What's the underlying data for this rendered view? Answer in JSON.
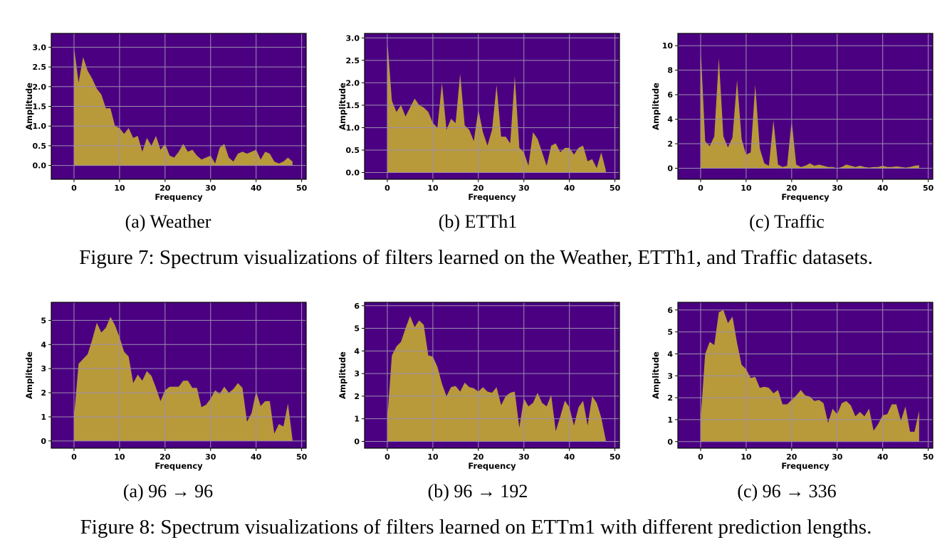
{
  "figures": [
    {
      "caption": "Figure 7: Spectrum visualizations of filters learned on the Weather, ETTh1, and Traffic datasets."
    },
    {
      "caption": "Figure 8: Spectrum visualizations of filters learned on ETTm1 with different prediction lengths."
    }
  ],
  "colors": {
    "background": "#4B0082",
    "fill": "#B89A3A",
    "grid": "#9D8EAD"
  },
  "chart_data": [
    {
      "type": "area",
      "subcaption": "(a)  Weather",
      "xlabel": "Frequency",
      "ylabel": "Amplitude",
      "xlim": [
        -5,
        51
      ],
      "ylim": [
        -0.35,
        3.35
      ],
      "xticks": [
        0,
        10,
        20,
        30,
        40,
        50
      ],
      "yticks": [
        0.0,
        0.5,
        1.0,
        1.5,
        2.0,
        2.5,
        3.0
      ],
      "ytick_labels": [
        "0.0",
        "0.5",
        "1.0",
        "1.5",
        "2.0",
        "2.5",
        "3.0"
      ],
      "grid": true,
      "x": [
        0,
        1,
        2,
        3,
        4,
        5,
        6,
        7,
        8,
        9,
        10,
        11,
        12,
        13,
        14,
        15,
        16,
        17,
        18,
        19,
        20,
        21,
        22,
        23,
        24,
        25,
        26,
        27,
        28,
        29,
        30,
        31,
        32,
        33,
        34,
        35,
        36,
        37,
        38,
        39,
        40,
        41,
        42,
        43,
        44,
        45,
        46,
        47,
        48
      ],
      "values": [
        3.0,
        2.1,
        2.75,
        2.4,
        2.2,
        1.95,
        1.8,
        1.45,
        1.45,
        1.0,
        0.95,
        0.8,
        0.95,
        0.7,
        0.75,
        0.35,
        0.7,
        0.5,
        0.75,
        0.4,
        0.55,
        0.25,
        0.2,
        0.35,
        0.55,
        0.35,
        0.4,
        0.25,
        0.15,
        0.2,
        0.25,
        0.05,
        0.45,
        0.55,
        0.2,
        0.1,
        0.3,
        0.35,
        0.3,
        0.35,
        0.4,
        0.15,
        0.35,
        0.3,
        0.1,
        0.05,
        0.1,
        0.2,
        0.1
      ]
    },
    {
      "type": "area",
      "subcaption": "(b)  ETTh1",
      "xlabel": "Frequency",
      "ylabel": "Amplitude",
      "xlim": [
        -5,
        51
      ],
      "ylim": [
        -0.15,
        3.1
      ],
      "xticks": [
        0,
        10,
        20,
        30,
        40,
        50
      ],
      "yticks": [
        0.0,
        0.5,
        1.0,
        1.5,
        2.0,
        2.5,
        3.0
      ],
      "ytick_labels": [
        "0.0",
        "0.5",
        "1.0",
        "1.5",
        "2.0",
        "2.5",
        "3.0"
      ],
      "grid": true,
      "x": [
        0,
        1,
        2,
        3,
        4,
        5,
        6,
        7,
        8,
        9,
        10,
        11,
        12,
        13,
        14,
        15,
        16,
        17,
        18,
        19,
        20,
        21,
        22,
        23,
        24,
        25,
        26,
        27,
        28,
        29,
        30,
        31,
        32,
        33,
        34,
        35,
        36,
        37,
        38,
        39,
        40,
        41,
        42,
        43,
        44,
        45,
        46,
        47,
        48
      ],
      "values": [
        2.95,
        1.6,
        1.35,
        1.5,
        1.25,
        1.45,
        1.65,
        1.5,
        1.45,
        1.35,
        1.1,
        1.0,
        2.0,
        0.95,
        1.2,
        1.1,
        2.2,
        1.05,
        0.95,
        0.7,
        1.4,
        0.9,
        0.6,
        0.95,
        1.95,
        0.8,
        0.8,
        0.65,
        2.15,
        0.55,
        0.45,
        0.15,
        0.9,
        0.75,
        0.45,
        0.15,
        0.6,
        0.65,
        0.45,
        0.55,
        0.55,
        0.4,
        0.55,
        0.6,
        0.25,
        0.3,
        0.1,
        0.45,
        0.05
      ]
    },
    {
      "type": "area",
      "subcaption": "(c)  Traffic",
      "xlabel": "Frequency",
      "ylabel": "Amplitude",
      "xlim": [
        -5,
        51
      ],
      "ylim": [
        -0.9,
        11.0
      ],
      "xticks": [
        0,
        10,
        20,
        30,
        40,
        50
      ],
      "yticks": [
        0,
        2,
        4,
        6,
        8,
        10
      ],
      "ytick_labels": [
        "0",
        "2",
        "4",
        "6",
        "8",
        "10"
      ],
      "grid": true,
      "x": [
        0,
        1,
        2,
        3,
        4,
        5,
        6,
        7,
        8,
        9,
        10,
        11,
        12,
        13,
        14,
        15,
        16,
        17,
        18,
        19,
        20,
        21,
        22,
        23,
        24,
        25,
        26,
        27,
        28,
        29,
        30,
        31,
        32,
        33,
        34,
        35,
        36,
        37,
        38,
        39,
        40,
        41,
        42,
        43,
        44,
        45,
        46,
        47,
        48
      ],
      "values": [
        10.0,
        2.2,
        1.8,
        2.6,
        9.0,
        2.6,
        1.7,
        2.5,
        7.2,
        2.4,
        1.1,
        1.3,
        6.8,
        1.6,
        0.4,
        0.2,
        3.9,
        0.3,
        0.1,
        0.2,
        3.9,
        0.3,
        0.1,
        0.2,
        0.4,
        0.2,
        0.3,
        0.2,
        0.1,
        0.1,
        0.0,
        0.1,
        0.3,
        0.2,
        0.1,
        0.2,
        0.1,
        0.05,
        0.1,
        0.1,
        0.2,
        0.1,
        0.1,
        0.15,
        0.1,
        0.05,
        0.1,
        0.2,
        0.25
      ]
    },
    {
      "type": "area",
      "subcaption": "(a)  96 → 96",
      "xlabel": "Frequency",
      "ylabel": "Amplitude",
      "xlim": [
        -5,
        51
      ],
      "ylim": [
        -0.3,
        5.75
      ],
      "xticks": [
        0,
        10,
        20,
        30,
        40,
        50
      ],
      "yticks": [
        0,
        1,
        2,
        3,
        4,
        5
      ],
      "ytick_labels": [
        "0",
        "1",
        "2",
        "3",
        "4",
        "5"
      ],
      "grid": true,
      "x": [
        0,
        1,
        2,
        3,
        4,
        5,
        6,
        7,
        8,
        9,
        10,
        11,
        12,
        13,
        14,
        15,
        16,
        17,
        18,
        19,
        20,
        21,
        22,
        23,
        24,
        25,
        26,
        27,
        28,
        29,
        30,
        31,
        32,
        33,
        34,
        35,
        36,
        37,
        38,
        39,
        40,
        41,
        42,
        43,
        44,
        45,
        46,
        47,
        48
      ],
      "values": [
        1.0,
        3.2,
        3.4,
        3.6,
        4.2,
        4.9,
        4.5,
        4.7,
        5.15,
        4.8,
        4.3,
        3.7,
        3.5,
        2.4,
        2.75,
        2.5,
        2.9,
        2.7,
        2.2,
        1.65,
        2.1,
        2.25,
        2.25,
        2.25,
        2.5,
        2.5,
        2.2,
        2.2,
        1.4,
        1.5,
        1.75,
        2.1,
        1.95,
        2.25,
        2.0,
        2.15,
        2.4,
        2.2,
        0.8,
        1.15,
        2.05,
        1.45,
        1.65,
        1.65,
        0.3,
        0.7,
        0.6,
        1.55,
        0.05
      ]
    },
    {
      "type": "area",
      "subcaption": "(b)  96 → 192",
      "xlabel": "Frequency",
      "ylabel": "Amplitude",
      "xlim": [
        -5,
        51
      ],
      "ylim": [
        -0.3,
        6.15
      ],
      "xticks": [
        0,
        10,
        20,
        30,
        40,
        50
      ],
      "yticks": [
        0,
        1,
        2,
        3,
        4,
        5,
        6
      ],
      "ytick_labels": [
        "0",
        "1",
        "2",
        "3",
        "4",
        "5",
        "6"
      ],
      "grid": true,
      "x": [
        0,
        1,
        2,
        3,
        4,
        5,
        6,
        7,
        8,
        9,
        10,
        11,
        12,
        13,
        14,
        15,
        16,
        17,
        18,
        19,
        20,
        21,
        22,
        23,
        24,
        25,
        26,
        27,
        28,
        29,
        30,
        31,
        32,
        33,
        34,
        35,
        36,
        37,
        38,
        39,
        40,
        41,
        42,
        43,
        44,
        45,
        46,
        47,
        48
      ],
      "values": [
        1.0,
        3.8,
        4.2,
        4.4,
        5.0,
        5.55,
        5.05,
        5.35,
        5.15,
        3.8,
        3.75,
        3.3,
        2.55,
        2.0,
        2.4,
        2.45,
        2.2,
        2.6,
        2.4,
        2.35,
        2.2,
        2.4,
        2.2,
        2.15,
        2.4,
        1.6,
        2.0,
        2.15,
        2.2,
        0.6,
        1.9,
        1.55,
        1.7,
        2.15,
        1.7,
        1.55,
        2.05,
        0.45,
        1.1,
        1.8,
        1.5,
        0.7,
        1.5,
        1.8,
        0.7,
        2.0,
        1.7,
        1.05,
        0.05
      ]
    },
    {
      "type": "area",
      "subcaption": "(c)  96 → 336",
      "xlabel": "Frequency",
      "ylabel": "Amplitude",
      "xlim": [
        -5,
        51
      ],
      "ylim": [
        -0.3,
        6.35
      ],
      "xticks": [
        0,
        10,
        20,
        30,
        40,
        50
      ],
      "yticks": [
        0,
        1,
        2,
        3,
        4,
        5,
        6
      ],
      "ytick_labels": [
        "0",
        "1",
        "2",
        "3",
        "4",
        "5",
        "6"
      ],
      "grid": true,
      "x": [
        0,
        1,
        2,
        3,
        4,
        5,
        6,
        7,
        8,
        9,
        10,
        11,
        12,
        13,
        14,
        15,
        16,
        17,
        18,
        19,
        20,
        21,
        22,
        23,
        24,
        25,
        26,
        27,
        28,
        29,
        30,
        31,
        32,
        33,
        34,
        35,
        36,
        37,
        38,
        39,
        40,
        41,
        42,
        43,
        44,
        45,
        46,
        47,
        48
      ],
      "values": [
        1.0,
        4.0,
        4.55,
        4.4,
        5.9,
        6.0,
        5.4,
        5.7,
        4.5,
        3.5,
        3.3,
        2.9,
        2.95,
        2.45,
        2.5,
        2.45,
        2.2,
        2.35,
        1.7,
        1.7,
        1.9,
        2.1,
        2.35,
        2.1,
        2.05,
        1.85,
        1.9,
        1.75,
        0.85,
        1.5,
        1.25,
        1.75,
        1.85,
        1.65,
        1.15,
        1.35,
        1.15,
        1.5,
        0.5,
        0.8,
        1.2,
        1.25,
        1.7,
        1.7,
        0.95,
        1.6,
        0.45,
        0.45,
        1.4
      ]
    }
  ]
}
